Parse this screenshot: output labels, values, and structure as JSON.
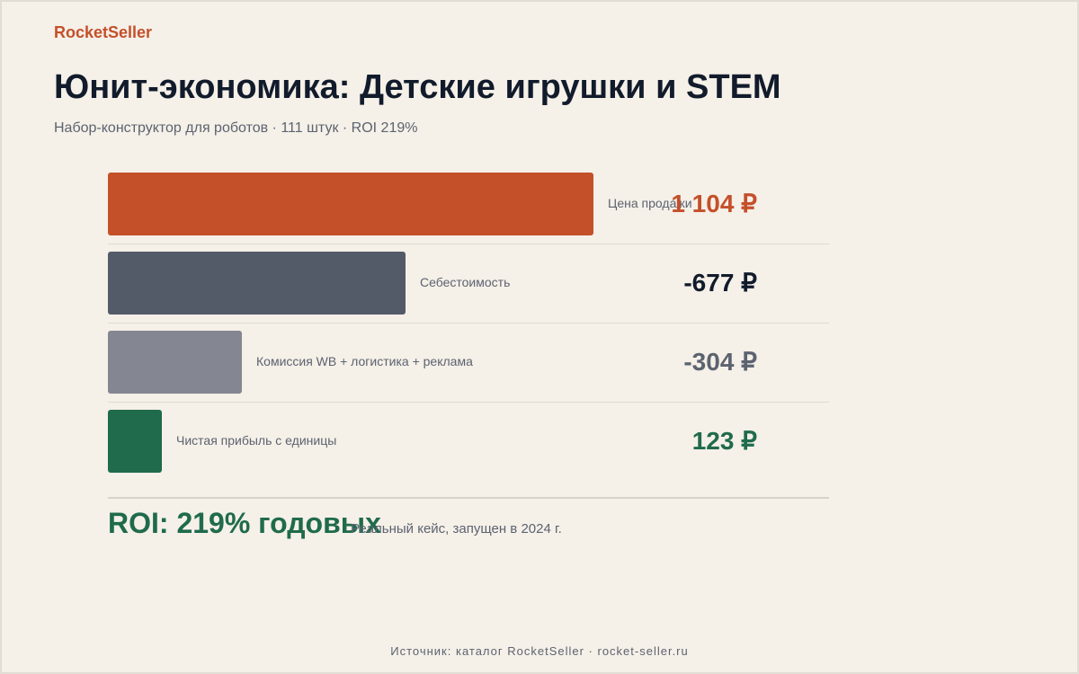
{
  "brand": "RocketSeller",
  "title": "Юнит-экономика: Детские игрушки и STEM",
  "subtitle": "Набор-конструктор для роботов · 111 штук · ROI 219%",
  "colors": {
    "price": "#c4502a",
    "cost": "#545b68",
    "fees": "#848791",
    "profit": "#1f6b4c",
    "background": "#f5f0e8"
  },
  "chart_data": {
    "type": "bar",
    "orientation": "horizontal",
    "categories": [
      "Цена продажи",
      "Себестоимость",
      "Комиссия WB + логистика + реклама",
      "Чистая прибыль с единицы"
    ],
    "values": [
      1104,
      -677,
      -304,
      123
    ],
    "value_labels": [
      "1 104 ₽",
      "-677 ₽",
      "-304 ₽",
      "123 ₽"
    ],
    "unit": "₽",
    "grid": false
  },
  "roi": {
    "headline": "ROI: 219% годовых",
    "note": "Реальный кейс, запущен в 2024 г."
  },
  "footer": {
    "source": "Источник: каталог RocketSeller · rocket-seller.ru"
  }
}
